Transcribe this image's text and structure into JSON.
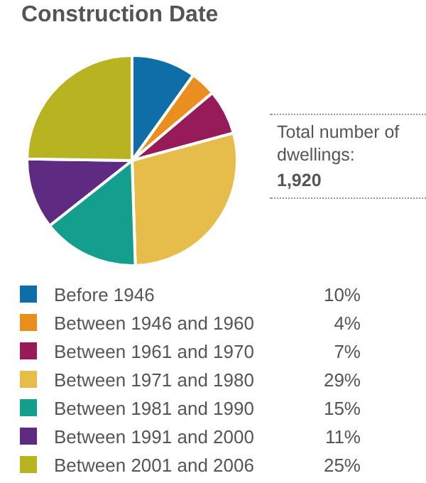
{
  "chart_data": {
    "type": "pie",
    "title": "Construction Date",
    "categories": [
      "Before 1946",
      "Between 1946 and 1960",
      "Between 1961 and 1970",
      "Between 1971 and 1980",
      "Between 1981 and 1990",
      "Between 1991 and 2000",
      "Between 2001 and 2006"
    ],
    "values": [
      10,
      4,
      7,
      29,
      15,
      11,
      25
    ],
    "value_labels": [
      "10%",
      "4%",
      "7%",
      "29%",
      "15%",
      "11%",
      "25%"
    ],
    "colors": [
      "#0f6ea8",
      "#e98e1f",
      "#981b59",
      "#e6bd4b",
      "#149e8e",
      "#5f2a82",
      "#b7b321"
    ],
    "annotations": [
      "Total number of dwellings:",
      "1,920"
    ],
    "legend": "bottom"
  }
}
